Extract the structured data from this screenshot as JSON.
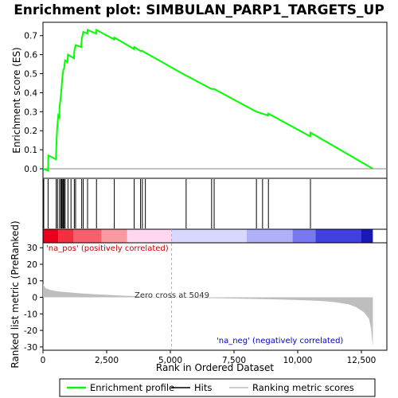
{
  "chart_data": {
    "type": "line",
    "title": "Enrichment plot: SIMBULAN_PARP1_TARGETS_UP",
    "xlabel": "Rank in Ordered Dataset",
    "ylabel_top": "Enrichment score (ES)",
    "ylabel_bottom": "Ranked list metric (PreRanked)",
    "xlim": [
      0,
      13500
    ],
    "x_ticks": [
      0,
      2500,
      5000,
      7500,
      10000,
      12500
    ],
    "x_tick_labels": [
      "0",
      "2,500",
      "5,000",
      "7,500",
      "10,000",
      "12,500"
    ],
    "es_ylim": [
      -0.05,
      0.77
    ],
    "es_ticks": [
      0.0,
      0.1,
      0.2,
      0.3,
      0.4,
      0.5,
      0.6,
      0.7
    ],
    "es_tick_labels": [
      "0.0",
      "0.1",
      "0.2",
      "0.3",
      "0.4",
      "0.5",
      "0.6",
      "0.7"
    ],
    "metric_ylim": [
      -32,
      33
    ],
    "metric_ticks": [
      -30,
      -20,
      -10,
      0,
      10,
      20,
      30
    ],
    "metric_tick_labels": [
      "-30",
      "-20",
      "-10",
      "0",
      "10",
      "20",
      "30"
    ],
    "n_genes": 12950,
    "zero_cross": 5049,
    "zero_cross_label": "Zero cross at 5049",
    "pos_label": "'na_pos' (positively correlated)",
    "neg_label": "'na_neg' (negatively correlated)",
    "hits": [
      30,
      200,
      520,
      570,
      650,
      700,
      730,
      760,
      800,
      830,
      870,
      980,
      1100,
      1230,
      1280,
      1520,
      1580,
      1750,
      2100,
      2800,
      3580,
      3830,
      3900,
      4020,
      5620,
      6620,
      6720,
      8380,
      8620,
      8850,
      10500
    ],
    "es_curve": [
      [
        0,
        0.0
      ],
      [
        200,
        -0.01
      ],
      [
        210,
        0.07
      ],
      [
        510,
        0.05
      ],
      [
        520,
        0.1
      ],
      [
        560,
        0.22
      ],
      [
        600,
        0.28
      ],
      [
        640,
        0.27
      ],
      [
        650,
        0.32
      ],
      [
        700,
        0.38
      ],
      [
        730,
        0.43
      ],
      [
        760,
        0.48
      ],
      [
        800,
        0.52
      ],
      [
        830,
        0.53
      ],
      [
        870,
        0.57
      ],
      [
        960,
        0.56
      ],
      [
        980,
        0.6
      ],
      [
        1090,
        0.59
      ],
      [
        1100,
        0.59
      ],
      [
        1220,
        0.58
      ],
      [
        1230,
        0.62
      ],
      [
        1280,
        0.65
      ],
      [
        1500,
        0.64
      ],
      [
        1520,
        0.68
      ],
      [
        1580,
        0.72
      ],
      [
        1740,
        0.71
      ],
      [
        1750,
        0.73
      ],
      [
        2090,
        0.71
      ],
      [
        2100,
        0.73
      ],
      [
        2790,
        0.68
      ],
      [
        2800,
        0.69
      ],
      [
        3570,
        0.63
      ],
      [
        3580,
        0.64
      ],
      [
        3820,
        0.62
      ],
      [
        3830,
        0.62
      ],
      [
        3900,
        0.62
      ],
      [
        4010,
        0.61
      ],
      [
        4020,
        0.61
      ],
      [
        5610,
        0.49
      ],
      [
        5620,
        0.49
      ],
      [
        6610,
        0.42
      ],
      [
        6620,
        0.42
      ],
      [
        6720,
        0.42
      ],
      [
        8370,
        0.3
      ],
      [
        8380,
        0.3
      ],
      [
        8610,
        0.29
      ],
      [
        8620,
        0.29
      ],
      [
        8840,
        0.28
      ],
      [
        8850,
        0.29
      ],
      [
        10490,
        0.17
      ],
      [
        10500,
        0.19
      ],
      [
        12950,
        0.0
      ]
    ],
    "metric_curve": [
      [
        0,
        8.0
      ],
      [
        100,
        5.5
      ],
      [
        300,
        4.4
      ],
      [
        600,
        3.6
      ],
      [
        1000,
        3.0
      ],
      [
        1500,
        2.4
      ],
      [
        2000,
        1.9
      ],
      [
        2500,
        1.5
      ],
      [
        3000,
        1.1
      ],
      [
        3500,
        0.8
      ],
      [
        4000,
        0.5
      ],
      [
        4500,
        0.25
      ],
      [
        5049,
        0.0
      ],
      [
        6000,
        -0.3
      ],
      [
        7000,
        -0.6
      ],
      [
        8000,
        -0.9
      ],
      [
        9000,
        -1.2
      ],
      [
        10000,
        -1.6
      ],
      [
        10500,
        -1.9
      ],
      [
        11000,
        -2.3
      ],
      [
        11500,
        -3.0
      ],
      [
        12000,
        -4.2
      ],
      [
        12300,
        -6.0
      ],
      [
        12600,
        -9.0
      ],
      [
        12800,
        -13.0
      ],
      [
        12880,
        -19.0
      ],
      [
        12920,
        -25.0
      ],
      [
        12950,
        -30.0
      ]
    ],
    "colors": {
      "es_line": "#00ff00",
      "hit_line": "#000000",
      "metric_fill": "#bebebe",
      "zero_line": "#aaaaaa",
      "pos_text": "#cc0000",
      "neg_text": "#0000cc"
    },
    "heat_bands": [
      [
        0,
        600,
        "#e8001c"
      ],
      [
        600,
        1200,
        "#f2303e"
      ],
      [
        1200,
        2300,
        "#f7606a"
      ],
      [
        2300,
        3300,
        "#fa9aa0"
      ],
      [
        3300,
        5049,
        "#fdd8f0"
      ],
      [
        5049,
        8000,
        "#d8d8ff"
      ],
      [
        8000,
        9800,
        "#b0b0f8"
      ],
      [
        9800,
        10700,
        "#7878f0"
      ],
      [
        10700,
        12500,
        "#4040e0"
      ],
      [
        12500,
        12950,
        "#1818b8"
      ]
    ],
    "legend": [
      {
        "label": "Enrichment profile",
        "kind": "es"
      },
      {
        "label": "Hits",
        "kind": "hit"
      },
      {
        "label": "Ranking metric scores",
        "kind": "metric"
      }
    ]
  }
}
